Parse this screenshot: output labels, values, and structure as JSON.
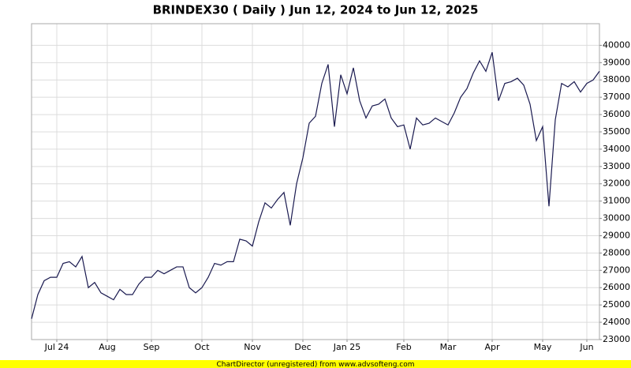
{
  "chart_data": {
    "type": "line",
    "title": "BRINDEX30 ( Daily ) Jun 12, 2024 to Jun 12, 2025",
    "footer": "ChartDirector (unregistered) from www.advsofteng.com",
    "categories": [
      null,
      null,
      null,
      null,
      "Jul 24",
      null,
      null,
      null,
      null,
      null,
      null,
      null,
      "Aug",
      null,
      null,
      null,
      null,
      null,
      null,
      "Sep",
      null,
      null,
      null,
      null,
      null,
      null,
      null,
      "Oct",
      null,
      null,
      null,
      null,
      null,
      null,
      null,
      "Nov",
      null,
      null,
      null,
      null,
      null,
      null,
      null,
      "Dec",
      null,
      null,
      null,
      null,
      null,
      null,
      "Jan 25",
      null,
      null,
      null,
      null,
      null,
      null,
      null,
      null,
      "Feb",
      null,
      null,
      null,
      null,
      null,
      null,
      "Mar",
      null,
      null,
      null,
      null,
      null,
      null,
      "Apr",
      null,
      null,
      null,
      null,
      null,
      null,
      null,
      "May",
      null,
      null,
      null,
      null,
      null,
      null,
      "Jun",
      null,
      null
    ],
    "series": [
      {
        "name": "BRINDEX30",
        "color": "#1a1a50",
        "values": [
          24200,
          25600,
          26400,
          26600,
          26600,
          27400,
          27500,
          27200,
          27800,
          26000,
          26300,
          25700,
          25500,
          25300,
          25900,
          25600,
          25600,
          26200,
          26600,
          26600,
          27000,
          26800,
          27000,
          27200,
          27200,
          26000,
          25700,
          26000,
          26600,
          27400,
          27300,
          27500,
          27500,
          28800,
          28700,
          28400,
          29800,
          30900,
          30600,
          31100,
          31500,
          29600,
          32000,
          33500,
          35500,
          35900,
          37800,
          38900,
          35300,
          38300,
          37200,
          38700,
          36800,
          35800,
          36500,
          36600,
          36900,
          35800,
          35300,
          35400,
          34000,
          35800,
          35400,
          35500,
          35800,
          35600,
          35400,
          36100,
          37000,
          37500,
          38400,
          39100,
          38500,
          39600,
          36800,
          37800,
          37900,
          38100,
          37700,
          36600,
          34500,
          35300,
          30700,
          35700,
          37800,
          37600,
          37900,
          37300,
          37800,
          38000,
          38500
        ]
      }
    ],
    "ylim": [
      23000,
      41250
    ],
    "yticks": [
      23000,
      24000,
      25000,
      26000,
      27000,
      28000,
      29000,
      30000,
      31000,
      32000,
      33000,
      34000,
      35000,
      36000,
      37000,
      38000,
      39000,
      40000
    ],
    "grid": true,
    "y_axis_side": "right"
  }
}
